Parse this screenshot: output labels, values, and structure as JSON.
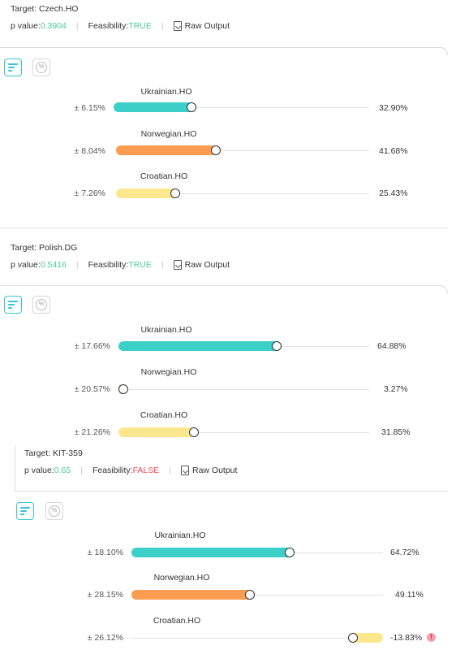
{
  "labels": {
    "target_prefix": "Target: ",
    "p_value_prefix": "p value: ",
    "feasibility_prefix": "Feasibility: ",
    "raw_output": "Raw Output",
    "separator": "|"
  },
  "icons": {
    "raw_output": "download-document-icon",
    "view_bars": "bar-chart-icon",
    "view_percent": "percent-icon",
    "warning": "warning-icon"
  },
  "colors": {
    "feasible": "#4cc9a0",
    "infeasible": "#e8485a",
    "p_value": "#4cc9a0",
    "ukrainian": "#3cd0c8",
    "norwegian": "#fa9d52",
    "croatian": "#fbe88e",
    "toggle_active": "#36c6d3"
  },
  "blocks": [
    {
      "target": "Czech.HO",
      "p_value": "0.3904",
      "feasibility": "TRUE",
      "rows": [
        {
          "label": "Ukrainian.HO",
          "error": "± 6.15%",
          "value": "32.90%",
          "pct": 32.9
        },
        {
          "label": "Norwegian.HO",
          "error": "± 8.04%",
          "value": "41.68%",
          "pct": 41.68
        },
        {
          "label": "Croatian.HO",
          "error": "± 7.26%",
          "value": "25.43%",
          "pct": 25.43
        }
      ]
    },
    {
      "target": "Polish.DG",
      "p_value": "0.5416",
      "feasibility": "TRUE",
      "rows": [
        {
          "label": "Ukrainian.HO",
          "error": "± 17.66%",
          "value": "64.88%",
          "pct": 64.88
        },
        {
          "label": "Norwegian.HO",
          "error": "± 20.57%",
          "value": "3.27%",
          "pct": 3.27
        },
        {
          "label": "Croatian.HO",
          "error": "± 21.26%",
          "value": "31.85%",
          "pct": 31.85
        }
      ]
    },
    {
      "target": "KIT-359",
      "p_value": "0.65",
      "feasibility": "FALSE",
      "rows": [
        {
          "label": "Ukrainian.HO",
          "error": "± 18.10%",
          "value": "64.72%",
          "pct": 64.72
        },
        {
          "label": "Norwegian.HO",
          "error": "± 28.15%",
          "value": "49.11%",
          "pct": 49.11
        },
        {
          "label": "Croatian.HO",
          "error": "± 26.12%",
          "value": "-13.83%",
          "pct": -13.83,
          "warning": true
        }
      ]
    }
  ]
}
